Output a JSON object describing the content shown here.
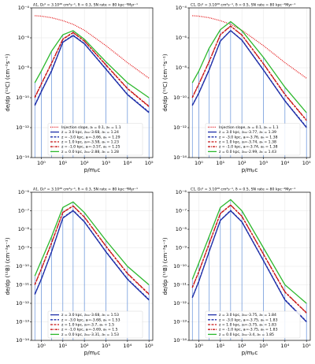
{
  "chart_data": [
    {
      "type": "line",
      "title": "A1, D₀⁰ = 3.10²⁸ cm²s⁻¹, δ = 0.3, SN rate = 80 kpc⁻²Myr⁻¹",
      "ylabel": "de/dp (¹²C) (cm⁻²s⁻¹)",
      "xlabel": "p/mₚc",
      "xscale": "log",
      "yscale": "log",
      "grid": true,
      "legend": "lower center",
      "droplines": true,
      "xlim": [
        0.35,
        150000
      ],
      "ylim": [
        1e-14,
        0.0001
      ],
      "xticks": [
        {
          "value": 1,
          "label": "10⁰"
        },
        {
          "value": 10,
          "label": "10¹"
        },
        {
          "value": 100,
          "label": "10²"
        },
        {
          "value": 1000,
          "label": "10³"
        },
        {
          "value": 10000,
          "label": "10⁴"
        },
        {
          "value": 100000,
          "label": "10⁵"
        }
      ],
      "yticks": [
        {
          "value": 1e-14,
          "label": "10⁻¹⁴"
        },
        {
          "value": 1e-12,
          "label": "10⁻¹²"
        },
        {
          "value": 1e-10,
          "label": "10⁻¹⁰"
        },
        {
          "value": 1e-08,
          "label": "10⁻⁸"
        },
        {
          "value": 1e-06,
          "label": "10⁻⁶"
        },
        {
          "value": 0.0001,
          "label": "10⁻⁴"
        }
      ],
      "x": [
        0.5,
        1,
        3,
        10,
        30,
        100,
        1000,
        10000,
        100000
      ],
      "series": [
        {
          "name": "Injection slope, aₗ = 0.1, aₕ = 1.1",
          "color": "#e41a1c",
          "dash": "dotted",
          "values": [
            3e-05,
            2.8e-05,
            2.2e-05,
            1.4e-05,
            8e-06,
            3.2e-06,
            3e-07,
            2.2e-08,
            2e-09
          ]
        },
        {
          "name": "z = 3.0 kpc, aₗ=-3.68, aₕ = 1.24",
          "color": "#1f2fa8",
          "dash": "solid",
          "values": [
            3e-11,
            2.5e-10,
            6e-09,
            5e-07,
            1.4e-06,
            4e-07,
            8e-09,
            1.6e-10,
            1e-11
          ]
        },
        {
          "name": "z = -3.0 kpc, aₗ=-3.66, aₕ = 1.29",
          "color": "#1f2fa8",
          "dash": "dashed",
          "values": [
            3.3e-11,
            2.7e-10,
            6.5e-09,
            5.3e-07,
            1.5e-06,
            4.2e-07,
            8.5e-09,
            1.7e-10,
            1.1e-11
          ]
        },
        {
          "name": "z = 1.0 kpc, aₗ=-3.58, aₕ = 1.23",
          "color": "#c81414",
          "dash": "dashed",
          "values": [
            1e-10,
            8e-10,
            2e-08,
            8e-07,
            2.2e-06,
            6e-07,
            1.5e-08,
            4e-10,
            2.5e-11
          ]
        },
        {
          "name": "z = -1.0 kpc, aₗ=-3.57, aₕ = 1.25",
          "color": "#c81414",
          "dash": "dashdot",
          "values": [
            1.1e-10,
            8.5e-10,
            2.1e-08,
            8.3e-07,
            2.3e-06,
            6.2e-07,
            1.6e-08,
            4.2e-10,
            2.7e-11
          ]
        },
        {
          "name": "z = 0.0 kpc, aₗ=-2.88, aₕ = 1.28",
          "color": "#2cb82c",
          "dash": "solid",
          "values": [
            1e-09,
            6e-09,
            1.3e-07,
            1.6e-06,
            3e-06,
            8e-07,
            2.5e-08,
            1e-09,
            1e-10
          ]
        }
      ]
    },
    {
      "type": "line",
      "title": "C1, D₀⁰ = 3.10²⁸ cm²s⁻¹, δ = 0.5, SN rate = 80 kpc⁻²Myr⁻¹",
      "ylabel": "de/dp (¹²C) (cm⁻²s⁻¹)",
      "xlabel": "p/mₚc",
      "xscale": "log",
      "yscale": "log",
      "grid": true,
      "legend": "lower center",
      "droplines": true,
      "xlim": [
        0.35,
        150000
      ],
      "ylim": [
        1e-14,
        0.0001
      ],
      "xticks": [
        {
          "value": 1,
          "label": "10⁰"
        },
        {
          "value": 10,
          "label": "10¹"
        },
        {
          "value": 100,
          "label": "10²"
        },
        {
          "value": 1000,
          "label": "10³"
        },
        {
          "value": 10000,
          "label": "10⁴"
        },
        {
          "value": 100000,
          "label": "10⁵"
        }
      ],
      "yticks": [
        {
          "value": 1e-14,
          "label": "10⁻¹⁴"
        },
        {
          "value": 1e-12,
          "label": "10⁻¹²"
        },
        {
          "value": 1e-10,
          "label": "10⁻¹⁰"
        },
        {
          "value": 1e-08,
          "label": "10⁻⁸"
        },
        {
          "value": 1e-06,
          "label": "10⁻⁶"
        },
        {
          "value": 0.0001,
          "label": "10⁻⁴"
        }
      ],
      "x": [
        0.5,
        1,
        3,
        10,
        30,
        100,
        1000,
        10000,
        100000
      ],
      "series": [
        {
          "name": "Injection slope, aₗ = 0.1, aₕ = 1.1",
          "color": "#e41a1c",
          "dash": "dotted",
          "values": [
            3e-05,
            2.8e-05,
            2.2e-05,
            1.4e-05,
            8e-06,
            3.2e-06,
            3e-07,
            2.2e-08,
            2e-09
          ]
        },
        {
          "name": "z = 3.0 kpc, aₗ=-3.77, aₕ = 1.39",
          "color": "#1f2fa8",
          "dash": "solid",
          "values": [
            3e-11,
            2e-10,
            7e-09,
            6e-07,
            3e-06,
            7e-07,
            7e-09,
            6e-11,
            1e-12
          ]
        },
        {
          "name": "z = -3.0 kpc, aₗ=-3.76, aₕ = 1.38",
          "color": "#1f2fa8",
          "dash": "dashed",
          "values": [
            3.2e-11,
            2.1e-10,
            7.3e-09,
            6.2e-07,
            3.1e-06,
            7.2e-07,
            7.3e-09,
            6.3e-11,
            1.1e-12
          ]
        },
        {
          "name": "z = 1.0 kpc, aₗ=-3.74, aₕ = 1.38",
          "color": "#c81414",
          "dash": "dashed",
          "values": [
            1e-10,
            8e-10,
            2.5e-08,
            1.6e-06,
            6e-06,
            1.5e-06,
            1.8e-08,
            1.6e-10,
            3e-12
          ]
        },
        {
          "name": "z = -1.0 kpc, aₗ=-3.74, aₕ = 1.38",
          "color": "#c81414",
          "dash": "dashdot",
          "values": [
            1.05e-10,
            8.4e-10,
            2.6e-08,
            1.65e-06,
            6.2e-06,
            1.55e-06,
            1.9e-08,
            1.7e-10,
            3.2e-12
          ]
        },
        {
          "name": "z = 0.0 kpc, aₗ=-2.99, aₕ = 1.43",
          "color": "#2cb82c",
          "dash": "solid",
          "values": [
            1e-09,
            6e-09,
            2e-07,
            3.5e-06,
            1.2e-05,
            3e-06,
            5e-08,
            5e-10,
            1e-11
          ]
        }
      ]
    },
    {
      "type": "line",
      "title": "A1, D₀⁰ = 3.10²⁸ cm²s⁻¹, δ = 0.3, SN rate = 80 kpc⁻²Myr⁻¹",
      "ylabel": "de/dp (¹¹B) (cm⁻²s⁻¹)",
      "xlabel": "p/mₚc",
      "xscale": "log",
      "yscale": "log",
      "grid": true,
      "legend": "lower center",
      "droplines": true,
      "xlim": [
        0.35,
        150000
      ],
      "ylim": [
        1e-14,
        1e-06
      ],
      "xticks": [
        {
          "value": 1,
          "label": "10⁰"
        },
        {
          "value": 10,
          "label": "10¹"
        },
        {
          "value": 100,
          "label": "10²"
        },
        {
          "value": 1000,
          "label": "10³"
        },
        {
          "value": 10000,
          "label": "10⁴"
        },
        {
          "value": 100000,
          "label": "10⁵"
        }
      ],
      "yticks": [
        {
          "value": 1e-14,
          "label": "10⁻¹⁴"
        },
        {
          "value": 1e-13,
          "label": "10⁻¹³"
        },
        {
          "value": 1e-12,
          "label": "10⁻¹²"
        },
        {
          "value": 1e-11,
          "label": "10⁻¹¹"
        },
        {
          "value": 1e-10,
          "label": "10⁻¹⁰"
        },
        {
          "value": 1e-09,
          "label": "10⁻⁹"
        },
        {
          "value": 1e-08,
          "label": "10⁻⁸"
        },
        {
          "value": 1e-07,
          "label": "10⁻⁷"
        },
        {
          "value": 1e-06,
          "label": "10⁻⁶"
        }
      ],
      "x": [
        0.5,
        1,
        3,
        10,
        30,
        100,
        1000,
        10000,
        100000
      ],
      "series": [
        {
          "name": "z = 3.0 kpc, aₗ=-3.68, aₕ = 1.53",
          "color": "#1f2fa8",
          "dash": "solid",
          "values": [
            3e-12,
            2e-11,
            6e-10,
            4e-08,
            1e-07,
            2.5e-08,
            6e-10,
            2e-11,
            1.5e-12
          ]
        },
        {
          "name": "z = -3.0 kpc, aₗ=-3.68, aₕ = 1.53",
          "color": "#1f2fa8",
          "dash": "dashed",
          "values": [
            3.2e-12,
            2.1e-11,
            6.3e-10,
            4.2e-08,
            1.05e-07,
            2.6e-08,
            6.3e-10,
            2.1e-11,
            1.6e-12
          ]
        },
        {
          "name": "z = 1.0 kpc, aₗ=-3.7, aₕ = 1.5",
          "color": "#c81414",
          "dash": "dashed",
          "values": [
            1e-11,
            7e-11,
            1.8e-09,
            8e-08,
            1.8e-07,
            4.5e-08,
            1.2e-09,
            4e-11,
            3e-12
          ]
        },
        {
          "name": "z = -1.0 kpc, aₗ=-3.69, aₕ = 1.5",
          "color": "#c81414",
          "dash": "dashdot",
          "values": [
            1.05e-11,
            7.3e-11,
            1.9e-09,
            8.3e-08,
            1.85e-07,
            4.6e-08,
            1.25e-09,
            4.2e-11,
            3.2e-12
          ]
        },
        {
          "name": "z = 0.0 kpc, aₗ=-3.31, aₕ = 1.53",
          "color": "#2cb82c",
          "dash": "solid",
          "values": [
            3e-11,
            2e-10,
            4e-09,
            1.5e-07,
            3e-07,
            8e-08,
            2.5e-09,
            1e-10,
            1e-11
          ]
        }
      ]
    },
    {
      "type": "line",
      "title": "C1, D₀⁰ = 3.10²⁸ cm²s⁻¹, δ = 0.5, SN rate = 80 kpc⁻²Myr⁻¹",
      "ylabel": "de/dp (¹¹B) (cm⁻²s⁻¹)",
      "xlabel": "p/mₚc",
      "xscale": "log",
      "yscale": "log",
      "grid": true,
      "legend": "lower center",
      "droplines": true,
      "xlim": [
        0.35,
        150000
      ],
      "ylim": [
        1e-14,
        1e-06
      ],
      "xticks": [
        {
          "value": 1,
          "label": "10⁰"
        },
        {
          "value": 10,
          "label": "10¹"
        },
        {
          "value": 100,
          "label": "10²"
        },
        {
          "value": 1000,
          "label": "10³"
        },
        {
          "value": 10000,
          "label": "10⁴"
        },
        {
          "value": 100000,
          "label": "10⁵"
        }
      ],
      "yticks": [
        {
          "value": 1e-14,
          "label": "10⁻¹⁴"
        },
        {
          "value": 1e-13,
          "label": "10⁻¹³"
        },
        {
          "value": 1e-12,
          "label": "10⁻¹²"
        },
        {
          "value": 1e-11,
          "label": "10⁻¹¹"
        },
        {
          "value": 1e-10,
          "label": "10⁻¹⁰"
        },
        {
          "value": 1e-09,
          "label": "10⁻⁹"
        },
        {
          "value": 1e-08,
          "label": "10⁻⁸"
        },
        {
          "value": 1e-07,
          "label": "10⁻⁷"
        },
        {
          "value": 1e-06,
          "label": "10⁻⁶"
        }
      ],
      "x": [
        0.5,
        1,
        3,
        10,
        30,
        100,
        1000,
        10000,
        100000
      ],
      "series": [
        {
          "name": "z = 3.0 kpc, aₗ=-3.75, aₕ = 1.84",
          "color": "#1f2fa8",
          "dash": "solid",
          "values": [
            2e-12,
            1.5e-11,
            6e-10,
            3e-08,
            1e-07,
            2.5e-08,
            2e-10,
            1.5e-12,
            1e-13
          ]
        },
        {
          "name": "z = -3.0 kpc, aₗ=-3.75, aₕ = 1.83",
          "color": "#1f2fa8",
          "dash": "dashed",
          "values": [
            2.1e-12,
            1.6e-11,
            6.3e-10,
            3.1e-08,
            1.05e-07,
            2.6e-08,
            2.1e-10,
            1.6e-12,
            1.05e-13
          ]
        },
        {
          "name": "z = 1.0 kpc, aₗ=-3.75, aₕ = 1.83",
          "color": "#c81414",
          "dash": "dashed",
          "values": [
            7e-12,
            5e-11,
            1.6e-09,
            7e-08,
            2e-07,
            5e-08,
            4.5e-10,
            4e-12,
            3e-13
          ]
        },
        {
          "name": "z = -1.0 kpc, aₗ=-3.75, aₕ = 1.83",
          "color": "#c81414",
          "dash": "dashdot",
          "values": [
            7.3e-12,
            5.2e-11,
            1.65e-09,
            7.2e-08,
            2.05e-07,
            5.1e-08,
            4.6e-10,
            4.2e-12,
            3.1e-13
          ]
        },
        {
          "name": "z = 0.0 kpc, aₗ=-3.4, aₕ = 1.85",
          "color": "#2cb82c",
          "dash": "solid",
          "values": [
            2e-11,
            1.5e-10,
            4e-09,
            1.5e-07,
            4e-07,
            1e-07,
            1e-09,
            1e-11,
            1e-12
          ]
        }
      ]
    }
  ]
}
